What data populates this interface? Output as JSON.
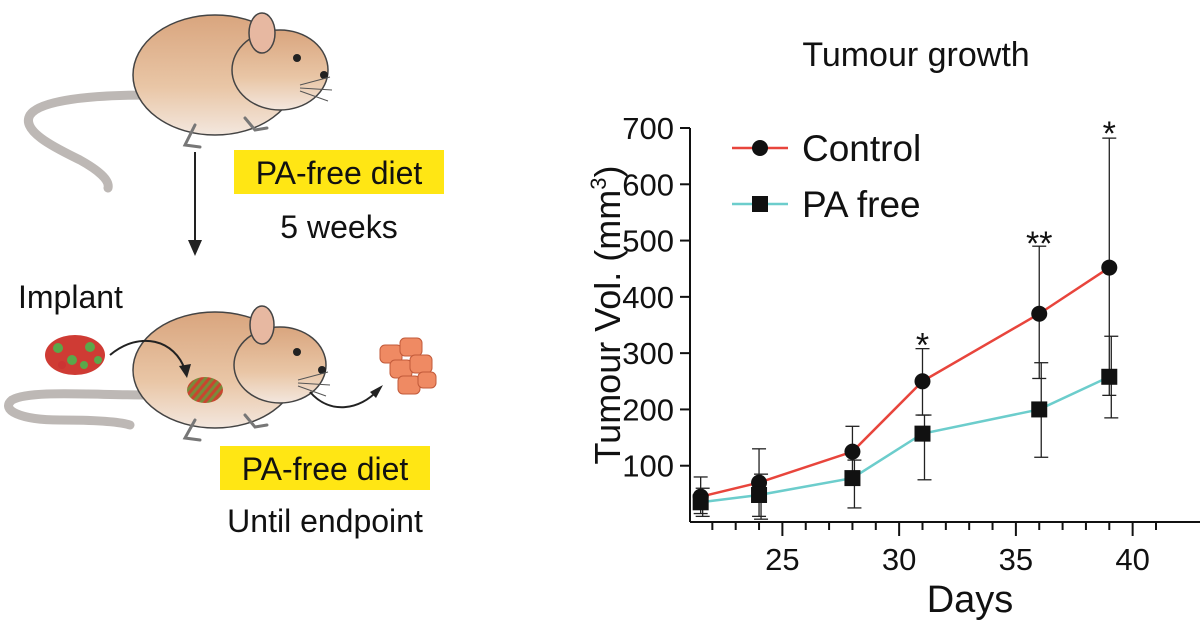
{
  "schematic": {
    "diet_label_1": "PA-free diet",
    "duration_1": "5 weeks",
    "implant_label": "Implant",
    "diet_label_2": "PA-free diet",
    "duration_2": "Until endpoint",
    "highlight_color": "#ffe614"
  },
  "chart_data": {
    "type": "line",
    "title": "Tumour growth",
    "xlabel": "Days",
    "ylabel": "Tumour Vol. (mm",
    "ylabel_superscript": "3",
    "ylabel_close": ")",
    "xlim": [
      21.3,
      41.9
    ],
    "ylim": [
      0,
      700
    ],
    "xticks": [
      25,
      30,
      35,
      40
    ],
    "yticks": [
      100,
      200,
      300,
      400,
      500,
      600,
      700
    ],
    "x": [
      21.5,
      24,
      28,
      31,
      36,
      39
    ],
    "series": [
      {
        "name": "Control",
        "marker": "circle",
        "color": "#e8453c",
        "values": [
          45,
          70,
          125,
          250,
          370,
          452
        ],
        "err_high": [
          80,
          130,
          170,
          308,
          490,
          682
        ],
        "err_low": [
          15,
          10,
          80,
          190,
          255,
          225
        ]
      },
      {
        "name": "PA free",
        "marker": "square",
        "color": "#6ccdcc",
        "values": [
          35,
          48,
          78,
          157,
          200,
          258
        ],
        "err_high": [
          60,
          85,
          110,
          190,
          283,
          330
        ],
        "err_low": [
          10,
          5,
          25,
          75,
          115,
          185
        ]
      }
    ],
    "annotations": [
      {
        "x": 31,
        "y": 330,
        "text": "*"
      },
      {
        "x": 36,
        "y": 510,
        "text": "**"
      },
      {
        "x": 39,
        "y": 705,
        "text": "*"
      }
    ],
    "legend_position": "top-left"
  }
}
